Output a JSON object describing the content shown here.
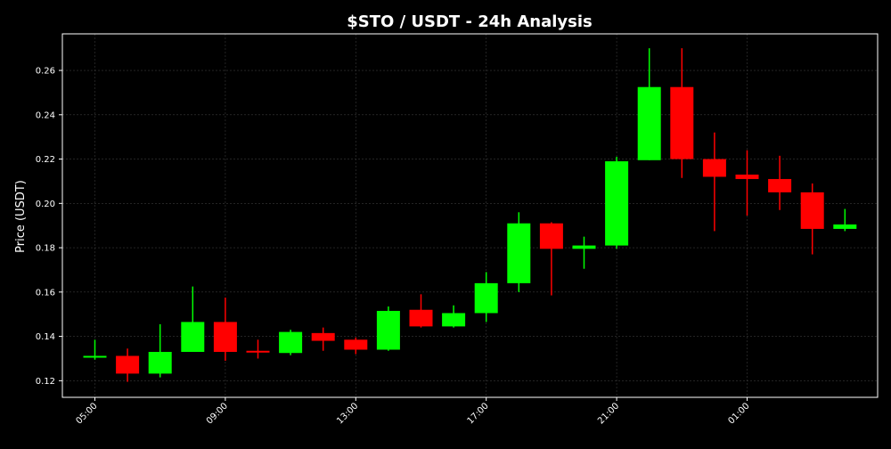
{
  "chart_data": {
    "type": "candlestick",
    "title": "$STO / USDT - 24h Analysis",
    "xlabel": "",
    "ylabel": "Price (USDT)",
    "ylim": [
      0.1125,
      0.2765
    ],
    "yticks": [
      "0.12",
      "0.14",
      "0.16",
      "0.18",
      "0.20",
      "0.22",
      "0.24",
      "0.26"
    ],
    "xticks": [
      {
        "label": "05:00",
        "index": 0
      },
      {
        "label": "09:00",
        "index": 4
      },
      {
        "label": "13:00",
        "index": 8
      },
      {
        "label": "17:00",
        "index": 12
      },
      {
        "label": "21:00",
        "index": 16
      },
      {
        "label": "01:00",
        "index": 20
      }
    ],
    "grid": true,
    "colors": {
      "background": "#000000",
      "frame": "#ffffff",
      "text": "#ffffff",
      "grid": "#3a3a3a",
      "up": "#00ff00",
      "down": "#ff0000"
    },
    "candles": [
      {
        "time": "05:00",
        "open": 0.131,
        "high": 0.1385,
        "low": 0.1295,
        "close": 0.1312
      },
      {
        "time": "06:00",
        "open": 0.1312,
        "high": 0.1345,
        "low": 0.1195,
        "close": 0.1232
      },
      {
        "time": "07:00",
        "open": 0.1232,
        "high": 0.1455,
        "low": 0.1215,
        "close": 0.133
      },
      {
        "time": "08:00",
        "open": 0.133,
        "high": 0.1625,
        "low": 0.133,
        "close": 0.1465
      },
      {
        "time": "09:00",
        "open": 0.1465,
        "high": 0.1575,
        "low": 0.129,
        "close": 0.133
      },
      {
        "time": "10:00",
        "open": 0.1335,
        "high": 0.1385,
        "low": 0.13,
        "close": 0.133
      },
      {
        "time": "11:00",
        "open": 0.1325,
        "high": 0.143,
        "low": 0.1315,
        "close": 0.142
      },
      {
        "time": "12:00",
        "open": 0.1415,
        "high": 0.144,
        "low": 0.1335,
        "close": 0.138
      },
      {
        "time": "13:00",
        "open": 0.1385,
        "high": 0.1395,
        "low": 0.132,
        "close": 0.134
      },
      {
        "time": "14:00",
        "open": 0.134,
        "high": 0.1535,
        "low": 0.1335,
        "close": 0.1515
      },
      {
        "time": "15:00",
        "open": 0.152,
        "high": 0.159,
        "low": 0.144,
        "close": 0.1445
      },
      {
        "time": "16:00",
        "open": 0.1445,
        "high": 0.154,
        "low": 0.144,
        "close": 0.1505
      },
      {
        "time": "17:00",
        "open": 0.1505,
        "high": 0.169,
        "low": 0.1465,
        "close": 0.164
      },
      {
        "time": "18:00",
        "open": 0.164,
        "high": 0.196,
        "low": 0.16,
        "close": 0.191
      },
      {
        "time": "19:00",
        "open": 0.191,
        "high": 0.1915,
        "low": 0.1585,
        "close": 0.1795
      },
      {
        "time": "20:00",
        "open": 0.1795,
        "high": 0.185,
        "low": 0.1705,
        "close": 0.181
      },
      {
        "time": "21:00",
        "open": 0.181,
        "high": 0.221,
        "low": 0.1795,
        "close": 0.219
      },
      {
        "time": "22:00",
        "open": 0.2195,
        "high": 0.27,
        "low": 0.2195,
        "close": 0.2525
      },
      {
        "time": "23:00",
        "open": 0.2525,
        "high": 0.27,
        "low": 0.2115,
        "close": 0.22
      },
      {
        "time": "00:00",
        "open": 0.22,
        "high": 0.232,
        "low": 0.1875,
        "close": 0.212
      },
      {
        "time": "01:00",
        "open": 0.213,
        "high": 0.224,
        "low": 0.1945,
        "close": 0.211
      },
      {
        "time": "02:00",
        "open": 0.211,
        "high": 0.2215,
        "low": 0.197,
        "close": 0.205
      },
      {
        "time": "03:00",
        "open": 0.205,
        "high": 0.209,
        "low": 0.177,
        "close": 0.1885
      },
      {
        "time": "04:00",
        "open": 0.1885,
        "high": 0.1975,
        "low": 0.1875,
        "close": 0.1905
      }
    ]
  }
}
